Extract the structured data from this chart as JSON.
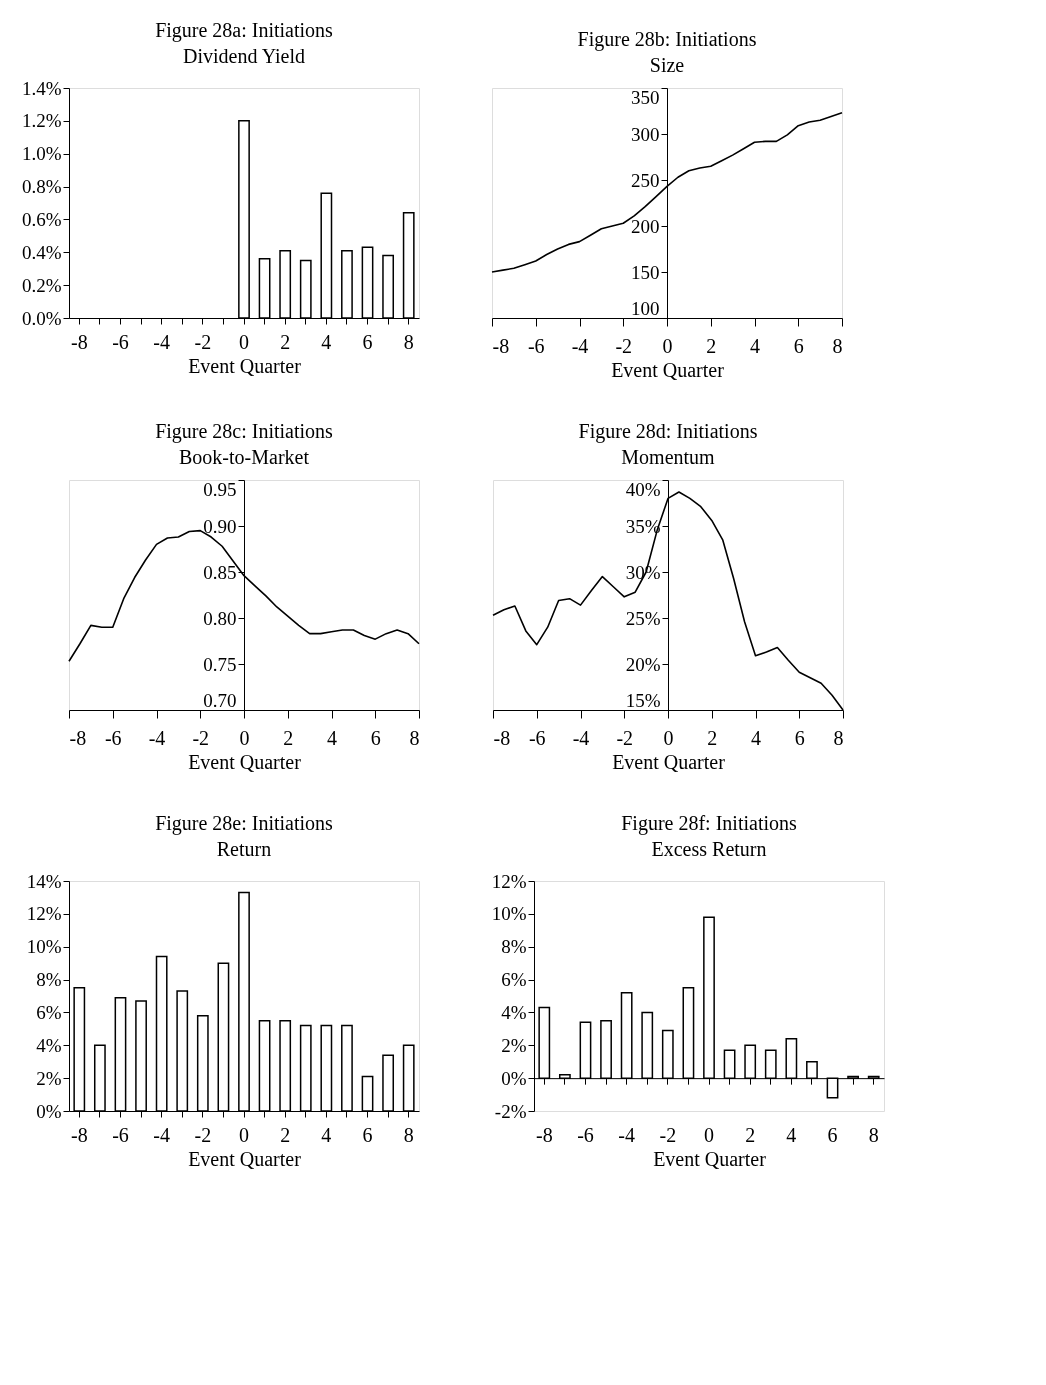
{
  "chart_data": [
    {
      "type": "bar",
      "title": "Figure 28a: Initiations",
      "subtitle": "Dividend Yield",
      "xlabel": "Event Quarter",
      "categories": [
        "-8",
        null,
        "-6",
        null,
        "-4",
        null,
        "-2",
        null,
        "0",
        null,
        "2",
        null,
        "4",
        null,
        "6",
        null,
        "8"
      ],
      "values": [
        null,
        null,
        null,
        null,
        null,
        null,
        null,
        null,
        1.2,
        0.36,
        0.41,
        0.35,
        0.76,
        0.41,
        0.43,
        0.38,
        0.64
      ],
      "color": "#ffffff",
      "ylim": [
        0,
        1.4
      ],
      "yticks": [
        {
          "value": 0,
          "label": "0.0%"
        },
        {
          "value": 0.2,
          "label": "0.2%"
        },
        {
          "value": 0.4,
          "label": "0.4%"
        },
        {
          "value": 0.6,
          "label": "0.6%"
        },
        {
          "value": 0.8,
          "label": "0.8%"
        },
        {
          "value": 1.0,
          "label": "1.0%"
        },
        {
          "value": 1.2,
          "label": "1.2%"
        },
        {
          "value": 1.4,
          "label": "1.4%"
        }
      ]
    },
    {
      "type": "line",
      "title": "Figure 28b: Initiations",
      "subtitle": "Size",
      "xlabel": "Event Quarter",
      "x": [
        -8,
        -7.5,
        -7,
        -6.5,
        -6,
        -5.5,
        -5,
        -4.5,
        -4,
        -3.5,
        -3,
        -2.5,
        -2,
        -1.5,
        -1,
        -0.5,
        0,
        0.5,
        1,
        1.5,
        2,
        2.5,
        3,
        3.5,
        4,
        4.5,
        5,
        5.5,
        6,
        6.5,
        7,
        7.5,
        8
      ],
      "values": [
        150,
        152,
        154,
        158,
        162,
        169,
        175,
        180,
        183,
        190,
        197,
        200,
        203,
        211,
        221,
        232,
        243,
        253,
        260,
        263,
        265,
        271,
        277,
        284,
        291,
        292,
        292,
        299,
        309,
        313,
        315,
        319,
        323
      ],
      "color": "#000000",
      "xlim": [
        -8,
        8
      ],
      "xticks": [
        -8,
        -6,
        -4,
        -2,
        0,
        2,
        4,
        6,
        8
      ],
      "ylim": [
        100,
        350
      ],
      "yticks": [
        100,
        150,
        200,
        250,
        300,
        350
      ]
    },
    {
      "type": "line",
      "title": "Figure 28c: Initiations",
      "subtitle": "Book-to-Market",
      "xlabel": "Event Quarter",
      "x": [
        -8,
        -7.5,
        -7,
        -6.5,
        -6,
        -5.5,
        -5,
        -4.5,
        -4,
        -3.5,
        -3,
        -2.5,
        -2,
        -1.5,
        -1,
        -0.5,
        0,
        0.5,
        1,
        1.5,
        2,
        2.5,
        3,
        3.5,
        4,
        4.5,
        5,
        5.5,
        6,
        6.5,
        7,
        7.5,
        8
      ],
      "values": [
        0.753,
        0.772,
        0.792,
        0.79,
        0.79,
        0.821,
        0.844,
        0.863,
        0.88,
        0.887,
        0.888,
        0.894,
        0.895,
        0.888,
        0.878,
        0.862,
        0.846,
        0.835,
        0.824,
        0.812,
        0.802,
        0.792,
        0.783,
        0.783,
        0.785,
        0.787,
        0.787,
        0.781,
        0.777,
        0.783,
        0.787,
        0.783,
        0.772
      ],
      "color": "#000000",
      "xlim": [
        -8,
        8
      ],
      "xticks": [
        -8,
        -6,
        -4,
        -2,
        0,
        2,
        4,
        6,
        8
      ],
      "ylim": [
        0.7,
        0.95
      ],
      "yticks": [
        {
          "value": 0.7,
          "label": "0.70"
        },
        {
          "value": 0.75,
          "label": "0.75"
        },
        {
          "value": 0.8,
          "label": "0.80"
        },
        {
          "value": 0.85,
          "label": "0.85"
        },
        {
          "value": 0.9,
          "label": "0.90"
        },
        {
          "value": 0.95,
          "label": "0.95"
        }
      ]
    },
    {
      "type": "line",
      "title": "Figure 28d: Initiations",
      "subtitle": "Momentum",
      "xlabel": "Event Quarter",
      "x": [
        -8,
        -7.5,
        -7,
        -6.5,
        -6,
        -5.5,
        -5,
        -4.5,
        -4,
        -3.5,
        -3,
        -2.5,
        -2,
        -1.5,
        -1,
        -0.5,
        0,
        0.5,
        1,
        1.5,
        2,
        2.5,
        3,
        3.5,
        4,
        4.5,
        5,
        5.5,
        6,
        6.5,
        7,
        7.5,
        8
      ],
      "values": [
        25.3,
        25.9,
        26.3,
        23.6,
        22.1,
        24.0,
        26.9,
        27.1,
        26.4,
        28.0,
        29.5,
        28.4,
        27.3,
        27.8,
        30.0,
        34.5,
        38.0,
        38.7,
        38.0,
        37.1,
        35.6,
        33.5,
        29.3,
        24.6,
        20.9,
        21.3,
        21.8,
        20.4,
        19.1,
        18.5,
        17.9,
        16.6,
        15
      ],
      "color": "#000000",
      "xlim": [
        -8,
        8
      ],
      "xticks": [
        -8,
        -6,
        -4,
        -2,
        0,
        2,
        4,
        6,
        8
      ],
      "ylim": [
        15,
        40
      ],
      "yticks": [
        {
          "value": 15,
          "label": "15%"
        },
        {
          "value": 20,
          "label": "20%"
        },
        {
          "value": 25,
          "label": "25%"
        },
        {
          "value": 30,
          "label": "30%"
        },
        {
          "value": 35,
          "label": "35%"
        },
        {
          "value": 40,
          "label": "40%"
        }
      ]
    },
    {
      "type": "bar",
      "title": "Figure 28e: Initiations",
      "subtitle": "Return",
      "xlabel": "Event Quarter",
      "categories": [
        "-8",
        null,
        "-6",
        null,
        "-4",
        null,
        "-2",
        null,
        "0",
        null,
        "2",
        null,
        "4",
        null,
        "6",
        null,
        "8"
      ],
      "values": [
        7.5,
        4.0,
        6.9,
        6.7,
        9.4,
        7.3,
        5.8,
        9.0,
        13.3,
        5.5,
        5.5,
        5.2,
        5.2,
        5.2,
        2.1,
        3.4,
        4.0
      ],
      "color": "#ffffff",
      "ylim": [
        0,
        14
      ],
      "yticks": [
        {
          "value": 0,
          "label": "0%"
        },
        {
          "value": 2,
          "label": "2%"
        },
        {
          "value": 4,
          "label": "4%"
        },
        {
          "value": 6,
          "label": "6%"
        },
        {
          "value": 8,
          "label": "8%"
        },
        {
          "value": 10,
          "label": "10%"
        },
        {
          "value": 12,
          "label": "12%"
        },
        {
          "value": 14,
          "label": "14%"
        }
      ]
    },
    {
      "type": "bar",
      "title": "Figure 28f: Initiations",
      "subtitle": "Excess Return",
      "xlabel": "Event Quarter",
      "categories": [
        "-8",
        null,
        "-6",
        null,
        "-4",
        null,
        "-2",
        null,
        "0",
        null,
        "2",
        null,
        "4",
        null,
        "6",
        null,
        "8"
      ],
      "values": [
        4.3,
        0.2,
        3.4,
        3.5,
        5.2,
        4.0,
        2.9,
        5.5,
        9.8,
        1.7,
        2.0,
        1.7,
        2.4,
        1.0,
        -1.2,
        0.1,
        0.1
      ],
      "color": "#ffffff",
      "ylim": [
        -2,
        12
      ],
      "yticks": [
        {
          "value": -2,
          "label": "-2%"
        },
        {
          "value": 0,
          "label": "0%"
        },
        {
          "value": 2,
          "label": "2%"
        },
        {
          "value": 4,
          "label": "4%"
        },
        {
          "value": 6,
          "label": "6%"
        },
        {
          "value": 8,
          "label": "8%"
        },
        {
          "value": 10,
          "label": "10%"
        },
        {
          "value": 12,
          "label": "12%"
        }
      ]
    }
  ]
}
